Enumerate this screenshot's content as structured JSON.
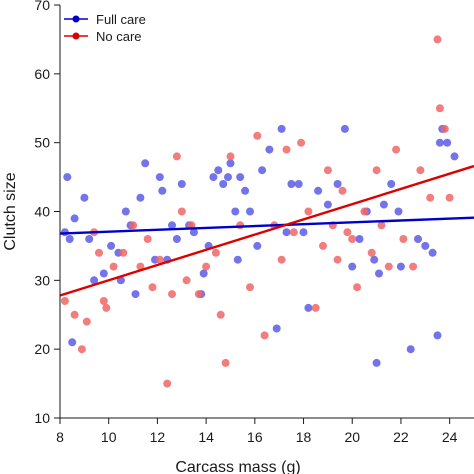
{
  "chart_data": {
    "type": "scatter",
    "xlabel": "Carcass mass (g)",
    "ylabel": "Clutch size",
    "xlim": [
      8,
      25
    ],
    "ylim": [
      10,
      70
    ],
    "xticks": [
      8,
      10,
      12,
      14,
      16,
      18,
      20,
      22,
      24
    ],
    "yticks": [
      10,
      20,
      30,
      40,
      50,
      60,
      70
    ],
    "legend_position": "top-left",
    "series": [
      {
        "name": "Full care",
        "color": "#0000cc",
        "point_color": "#5a5ae6",
        "trend": {
          "x": [
            8,
            25
          ],
          "y": [
            36.8,
            39.1
          ]
        },
        "points": [
          {
            "x": 8.2,
            "y": 37
          },
          {
            "x": 8.3,
            "y": 45
          },
          {
            "x": 8.4,
            "y": 36
          },
          {
            "x": 8.5,
            "y": 21
          },
          {
            "x": 8.6,
            "y": 39
          },
          {
            "x": 9.0,
            "y": 42
          },
          {
            "x": 9.2,
            "y": 36
          },
          {
            "x": 9.4,
            "y": 30
          },
          {
            "x": 9.8,
            "y": 31
          },
          {
            "x": 10.1,
            "y": 35
          },
          {
            "x": 10.4,
            "y": 34
          },
          {
            "x": 10.5,
            "y": 30
          },
          {
            "x": 10.7,
            "y": 40
          },
          {
            "x": 10.9,
            "y": 38
          },
          {
            "x": 11.1,
            "y": 28
          },
          {
            "x": 11.3,
            "y": 42
          },
          {
            "x": 11.5,
            "y": 47
          },
          {
            "x": 11.9,
            "y": 33
          },
          {
            "x": 12.1,
            "y": 45
          },
          {
            "x": 12.2,
            "y": 43
          },
          {
            "x": 12.4,
            "y": 33
          },
          {
            "x": 12.6,
            "y": 38
          },
          {
            "x": 12.8,
            "y": 36
          },
          {
            "x": 13.0,
            "y": 44
          },
          {
            "x": 13.3,
            "y": 38
          },
          {
            "x": 13.5,
            "y": 37
          },
          {
            "x": 13.8,
            "y": 28
          },
          {
            "x": 13.9,
            "y": 31
          },
          {
            "x": 14.1,
            "y": 35
          },
          {
            "x": 14.3,
            "y": 45
          },
          {
            "x": 14.5,
            "y": 46
          },
          {
            "x": 14.7,
            "y": 44
          },
          {
            "x": 14.9,
            "y": 45
          },
          {
            "x": 15.0,
            "y": 47
          },
          {
            "x": 15.2,
            "y": 40
          },
          {
            "x": 15.3,
            "y": 33
          },
          {
            "x": 15.4,
            "y": 45
          },
          {
            "x": 15.6,
            "y": 43
          },
          {
            "x": 15.8,
            "y": 40
          },
          {
            "x": 16.1,
            "y": 35
          },
          {
            "x": 16.3,
            "y": 46
          },
          {
            "x": 16.6,
            "y": 49
          },
          {
            "x": 16.9,
            "y": 23
          },
          {
            "x": 17.1,
            "y": 52
          },
          {
            "x": 17.3,
            "y": 37
          },
          {
            "x": 17.5,
            "y": 44
          },
          {
            "x": 17.8,
            "y": 44
          },
          {
            "x": 18.0,
            "y": 37
          },
          {
            "x": 18.2,
            "y": 26
          },
          {
            "x": 18.6,
            "y": 43
          },
          {
            "x": 19.0,
            "y": 41
          },
          {
            "x": 19.4,
            "y": 44
          },
          {
            "x": 19.7,
            "y": 52
          },
          {
            "x": 20.0,
            "y": 32
          },
          {
            "x": 20.3,
            "y": 36
          },
          {
            "x": 20.6,
            "y": 40
          },
          {
            "x": 20.9,
            "y": 33
          },
          {
            "x": 21.0,
            "y": 18
          },
          {
            "x": 21.1,
            "y": 31
          },
          {
            "x": 21.3,
            "y": 41
          },
          {
            "x": 21.6,
            "y": 44
          },
          {
            "x": 21.9,
            "y": 40
          },
          {
            "x": 22.0,
            "y": 32
          },
          {
            "x": 22.4,
            "y": 20
          },
          {
            "x": 22.7,
            "y": 36
          },
          {
            "x": 23.0,
            "y": 35
          },
          {
            "x": 23.3,
            "y": 34
          },
          {
            "x": 23.5,
            "y": 22
          },
          {
            "x": 23.6,
            "y": 50
          },
          {
            "x": 23.7,
            "y": 52
          },
          {
            "x": 23.9,
            "y": 50
          },
          {
            "x": 24.2,
            "y": 48
          }
        ]
      },
      {
        "name": "No care",
        "color": "#dd0000",
        "point_color": "#ee6666",
        "trend": {
          "x": [
            8,
            25
          ],
          "y": [
            27.8,
            46.6
          ]
        },
        "points": [
          {
            "x": 8.2,
            "y": 27
          },
          {
            "x": 8.6,
            "y": 25
          },
          {
            "x": 8.9,
            "y": 20
          },
          {
            "x": 9.1,
            "y": 24
          },
          {
            "x": 9.4,
            "y": 37
          },
          {
            "x": 9.6,
            "y": 34
          },
          {
            "x": 9.8,
            "y": 27
          },
          {
            "x": 9.9,
            "y": 26
          },
          {
            "x": 10.2,
            "y": 32
          },
          {
            "x": 10.6,
            "y": 34
          },
          {
            "x": 11.0,
            "y": 38
          },
          {
            "x": 11.3,
            "y": 32
          },
          {
            "x": 11.6,
            "y": 36
          },
          {
            "x": 11.8,
            "y": 29
          },
          {
            "x": 12.1,
            "y": 33
          },
          {
            "x": 12.4,
            "y": 15
          },
          {
            "x": 12.6,
            "y": 28
          },
          {
            "x": 12.8,
            "y": 48
          },
          {
            "x": 13.0,
            "y": 40
          },
          {
            "x": 13.2,
            "y": 30
          },
          {
            "x": 13.4,
            "y": 38
          },
          {
            "x": 13.7,
            "y": 28
          },
          {
            "x": 14.0,
            "y": 32
          },
          {
            "x": 14.4,
            "y": 34
          },
          {
            "x": 14.6,
            "y": 25
          },
          {
            "x": 14.8,
            "y": 18
          },
          {
            "x": 15.0,
            "y": 48
          },
          {
            "x": 15.4,
            "y": 38
          },
          {
            "x": 15.8,
            "y": 29
          },
          {
            "x": 16.1,
            "y": 51
          },
          {
            "x": 16.4,
            "y": 22
          },
          {
            "x": 16.8,
            "y": 38
          },
          {
            "x": 17.1,
            "y": 33
          },
          {
            "x": 17.3,
            "y": 49
          },
          {
            "x": 17.6,
            "y": 37
          },
          {
            "x": 17.9,
            "y": 50
          },
          {
            "x": 18.2,
            "y": 40
          },
          {
            "x": 18.5,
            "y": 26
          },
          {
            "x": 18.8,
            "y": 35
          },
          {
            "x": 19.0,
            "y": 46
          },
          {
            "x": 19.2,
            "y": 38
          },
          {
            "x": 19.4,
            "y": 33
          },
          {
            "x": 19.6,
            "y": 43
          },
          {
            "x": 19.8,
            "y": 37
          },
          {
            "x": 20.0,
            "y": 36
          },
          {
            "x": 20.2,
            "y": 29
          },
          {
            "x": 20.5,
            "y": 40
          },
          {
            "x": 20.8,
            "y": 34
          },
          {
            "x": 21.0,
            "y": 46
          },
          {
            "x": 21.2,
            "y": 38
          },
          {
            "x": 21.5,
            "y": 32
          },
          {
            "x": 21.8,
            "y": 49
          },
          {
            "x": 22.1,
            "y": 36
          },
          {
            "x": 22.5,
            "y": 32
          },
          {
            "x": 22.8,
            "y": 46
          },
          {
            "x": 23.2,
            "y": 42
          },
          {
            "x": 23.5,
            "y": 65
          },
          {
            "x": 23.6,
            "y": 55
          },
          {
            "x": 23.8,
            "y": 52
          },
          {
            "x": 24.0,
            "y": 42
          }
        ]
      }
    ]
  }
}
